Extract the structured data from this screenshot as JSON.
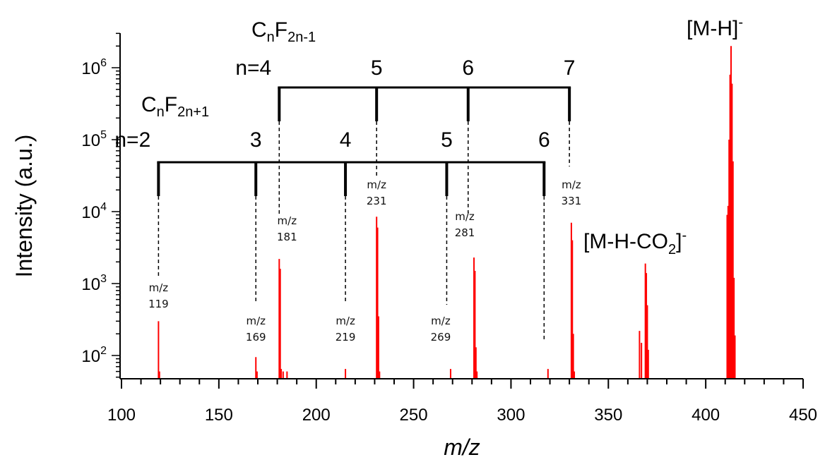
{
  "chart_data": {
    "type": "bar",
    "xlabel": "m/z",
    "ylabel": "Intensity (a.u.)",
    "xlim": [
      100,
      450
    ],
    "ylim": [
      50,
      3000000
    ],
    "yscale": "log",
    "grid": false,
    "bar_color": "#ff0000",
    "x_ticks": [
      "100",
      "150",
      "200",
      "250",
      "300",
      "350",
      "400",
      "450"
    ],
    "y_ticks": [
      {
        "base": "10",
        "exp": "2",
        "value": 100
      },
      {
        "base": "10",
        "exp": "3",
        "value": 1000
      },
      {
        "base": "10",
        "exp": "4",
        "value": 10000
      },
      {
        "base": "10",
        "exp": "5",
        "value": 100000
      },
      {
        "base": "10",
        "exp": "6",
        "value": 1000000
      }
    ],
    "peaks": [
      {
        "x": 119,
        "y": 300
      },
      {
        "x": 119.5,
        "y": 60
      },
      {
        "x": 169,
        "y": 95
      },
      {
        "x": 169.6,
        "y": 60
      },
      {
        "x": 181,
        "y": 2200
      },
      {
        "x": 181.5,
        "y": 1600
      },
      {
        "x": 182,
        "y": 65
      },
      {
        "x": 183,
        "y": 60
      },
      {
        "x": 185,
        "y": 60
      },
      {
        "x": 215,
        "y": 65
      },
      {
        "x": 231,
        "y": 8500
      },
      {
        "x": 231.5,
        "y": 6000
      },
      {
        "x": 232,
        "y": 350
      },
      {
        "x": 232.5,
        "y": 60
      },
      {
        "x": 269,
        "y": 65
      },
      {
        "x": 281,
        "y": 2300
      },
      {
        "x": 281.5,
        "y": 1500
      },
      {
        "x": 282,
        "y": 130
      },
      {
        "x": 282.5,
        "y": 60
      },
      {
        "x": 319,
        "y": 65
      },
      {
        "x": 331,
        "y": 7000
      },
      {
        "x": 331.5,
        "y": 4000
      },
      {
        "x": 332,
        "y": 200
      },
      {
        "x": 332.5,
        "y": 60
      },
      {
        "x": 366,
        "y": 220
      },
      {
        "x": 367,
        "y": 150
      },
      {
        "x": 369,
        "y": 1900
      },
      {
        "x": 369.5,
        "y": 1400
      },
      {
        "x": 370,
        "y": 500
      },
      {
        "x": 370.5,
        "y": 120
      },
      {
        "x": 411,
        "y": 9000
      },
      {
        "x": 411.5,
        "y": 12000
      },
      {
        "x": 412,
        "y": 100000
      },
      {
        "x": 412.5,
        "y": 800000
      },
      {
        "x": 413,
        "y": 2000000
      },
      {
        "x": 413.5,
        "y": 600000
      },
      {
        "x": 414,
        "y": 50000
      },
      {
        "x": 414.5,
        "y": 1200
      },
      {
        "x": 415,
        "y": 190
      }
    ],
    "series_CnF2n+1": {
      "formula": {
        "base": "C",
        "sub1": "n",
        "mid": "F",
        "sub2": "2n+1"
      },
      "members": [
        {
          "n": "n=2",
          "mz_label": "m/z",
          "mz": "119",
          "x": 119
        },
        {
          "n": "3",
          "mz_label": "m/z",
          "mz": "169",
          "x": 169
        },
        {
          "n": "4",
          "mz_label": "m/z",
          "mz": "219",
          "x": 215
        },
        {
          "n": "5",
          "mz_label": "m/z",
          "mz": "269",
          "x": 267
        },
        {
          "n": "6",
          "mz_label": "m/z",
          "mz": "",
          "x": 317
        }
      ]
    },
    "series_CnF2n-1": {
      "formula": {
        "base": "C",
        "sub1": "n",
        "mid": "F",
        "sub2": "2n-1"
      },
      "members": [
        {
          "n": "n=4",
          "mz_label": "m/z",
          "mz": "181",
          "x": 181
        },
        {
          "n": "5",
          "mz_label": "m/z",
          "mz": "231",
          "x": 231
        },
        {
          "n": "6",
          "mz_label": "m/z",
          "mz": "281",
          "x": 278
        },
        {
          "n": "7",
          "mz_label": "m/z",
          "mz": "331",
          "x": 330
        }
      ],
      "extra_mz": {
        "mz_label": "m/z",
        "mz": "331"
      }
    },
    "ions": {
      "parent": {
        "text": "[M-H]",
        "sup": "-"
      },
      "decarboxylated": {
        "text_a": "[M-H-CO",
        "sub": "2",
        "text_b": "]",
        "sup": "-"
      }
    }
  }
}
